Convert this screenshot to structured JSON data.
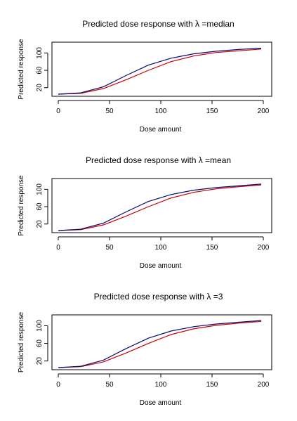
{
  "chart_data": [
    {
      "type": "line",
      "title": "Predicted dose response with λ =median",
      "xlabel": "Dose amount",
      "ylabel": "Predicted response",
      "xlim": [
        0,
        200
      ],
      "ylim": [
        5,
        120
      ],
      "xticks": [
        0,
        50,
        100,
        150,
        200
      ],
      "yticks": [
        20,
        60,
        100
      ],
      "ytick_labels": [
        "20",
        "60",
        "100"
      ],
      "grid": false,
      "series": [
        {
          "color": "#0a0a6e",
          "x": [
            0,
            22,
            44,
            66,
            88,
            110,
            132,
            154,
            176,
            198
          ],
          "y": [
            5,
            8,
            22,
            48,
            72,
            88,
            98,
            104,
            108,
            111
          ]
        },
        {
          "color": "#cc0000",
          "x": [
            0,
            22,
            44,
            66,
            88,
            110,
            132,
            154,
            176,
            198
          ],
          "y": [
            5,
            7,
            18,
            38,
            60,
            80,
            93,
            101,
            105,
            109
          ]
        }
      ]
    },
    {
      "type": "line",
      "title": "Predicted dose response with λ =mean",
      "xlabel": "Dose amount",
      "ylabel": "Predicted response",
      "xlim": [
        0,
        200
      ],
      "ylim": [
        5,
        120
      ],
      "xticks": [
        0,
        50,
        100,
        150,
        200
      ],
      "yticks": [
        20,
        60,
        100
      ],
      "ytick_labels": [
        "20",
        "60",
        "100"
      ],
      "grid": false,
      "series": [
        {
          "color": "#0a0a6e",
          "x": [
            0,
            22,
            44,
            66,
            88,
            110,
            132,
            154,
            176,
            198
          ],
          "y": [
            5,
            8,
            22,
            48,
            72,
            88,
            98,
            104,
            108,
            112
          ]
        },
        {
          "color": "#cc0000",
          "x": [
            0,
            22,
            44,
            66,
            88,
            110,
            132,
            154,
            176,
            198
          ],
          "y": [
            5,
            7,
            18,
            38,
            60,
            80,
            93,
            101,
            106,
            110
          ]
        }
      ]
    },
    {
      "type": "line",
      "title": "Predicted dose response with λ =3",
      "xlabel": "Dose amount",
      "ylabel": "Predicted response",
      "xlim": [
        0,
        200
      ],
      "ylim": [
        5,
        120
      ],
      "xticks": [
        0,
        50,
        100,
        150,
        200
      ],
      "yticks": [
        20,
        60,
        100
      ],
      "ytick_labels": [
        "20",
        "60",
        "100"
      ],
      "grid": false,
      "series": [
        {
          "color": "#0a0a6e",
          "x": [
            0,
            22,
            44,
            66,
            88,
            110,
            132,
            154,
            176,
            198
          ],
          "y": [
            5,
            8,
            22,
            48,
            72,
            88,
            98,
            104,
            108,
            112
          ]
        },
        {
          "color": "#cc0000",
          "x": [
            0,
            22,
            44,
            66,
            88,
            110,
            132,
            154,
            176,
            198
          ],
          "y": [
            5,
            7,
            18,
            38,
            60,
            80,
            93,
            101,
            106,
            110
          ]
        }
      ]
    }
  ]
}
